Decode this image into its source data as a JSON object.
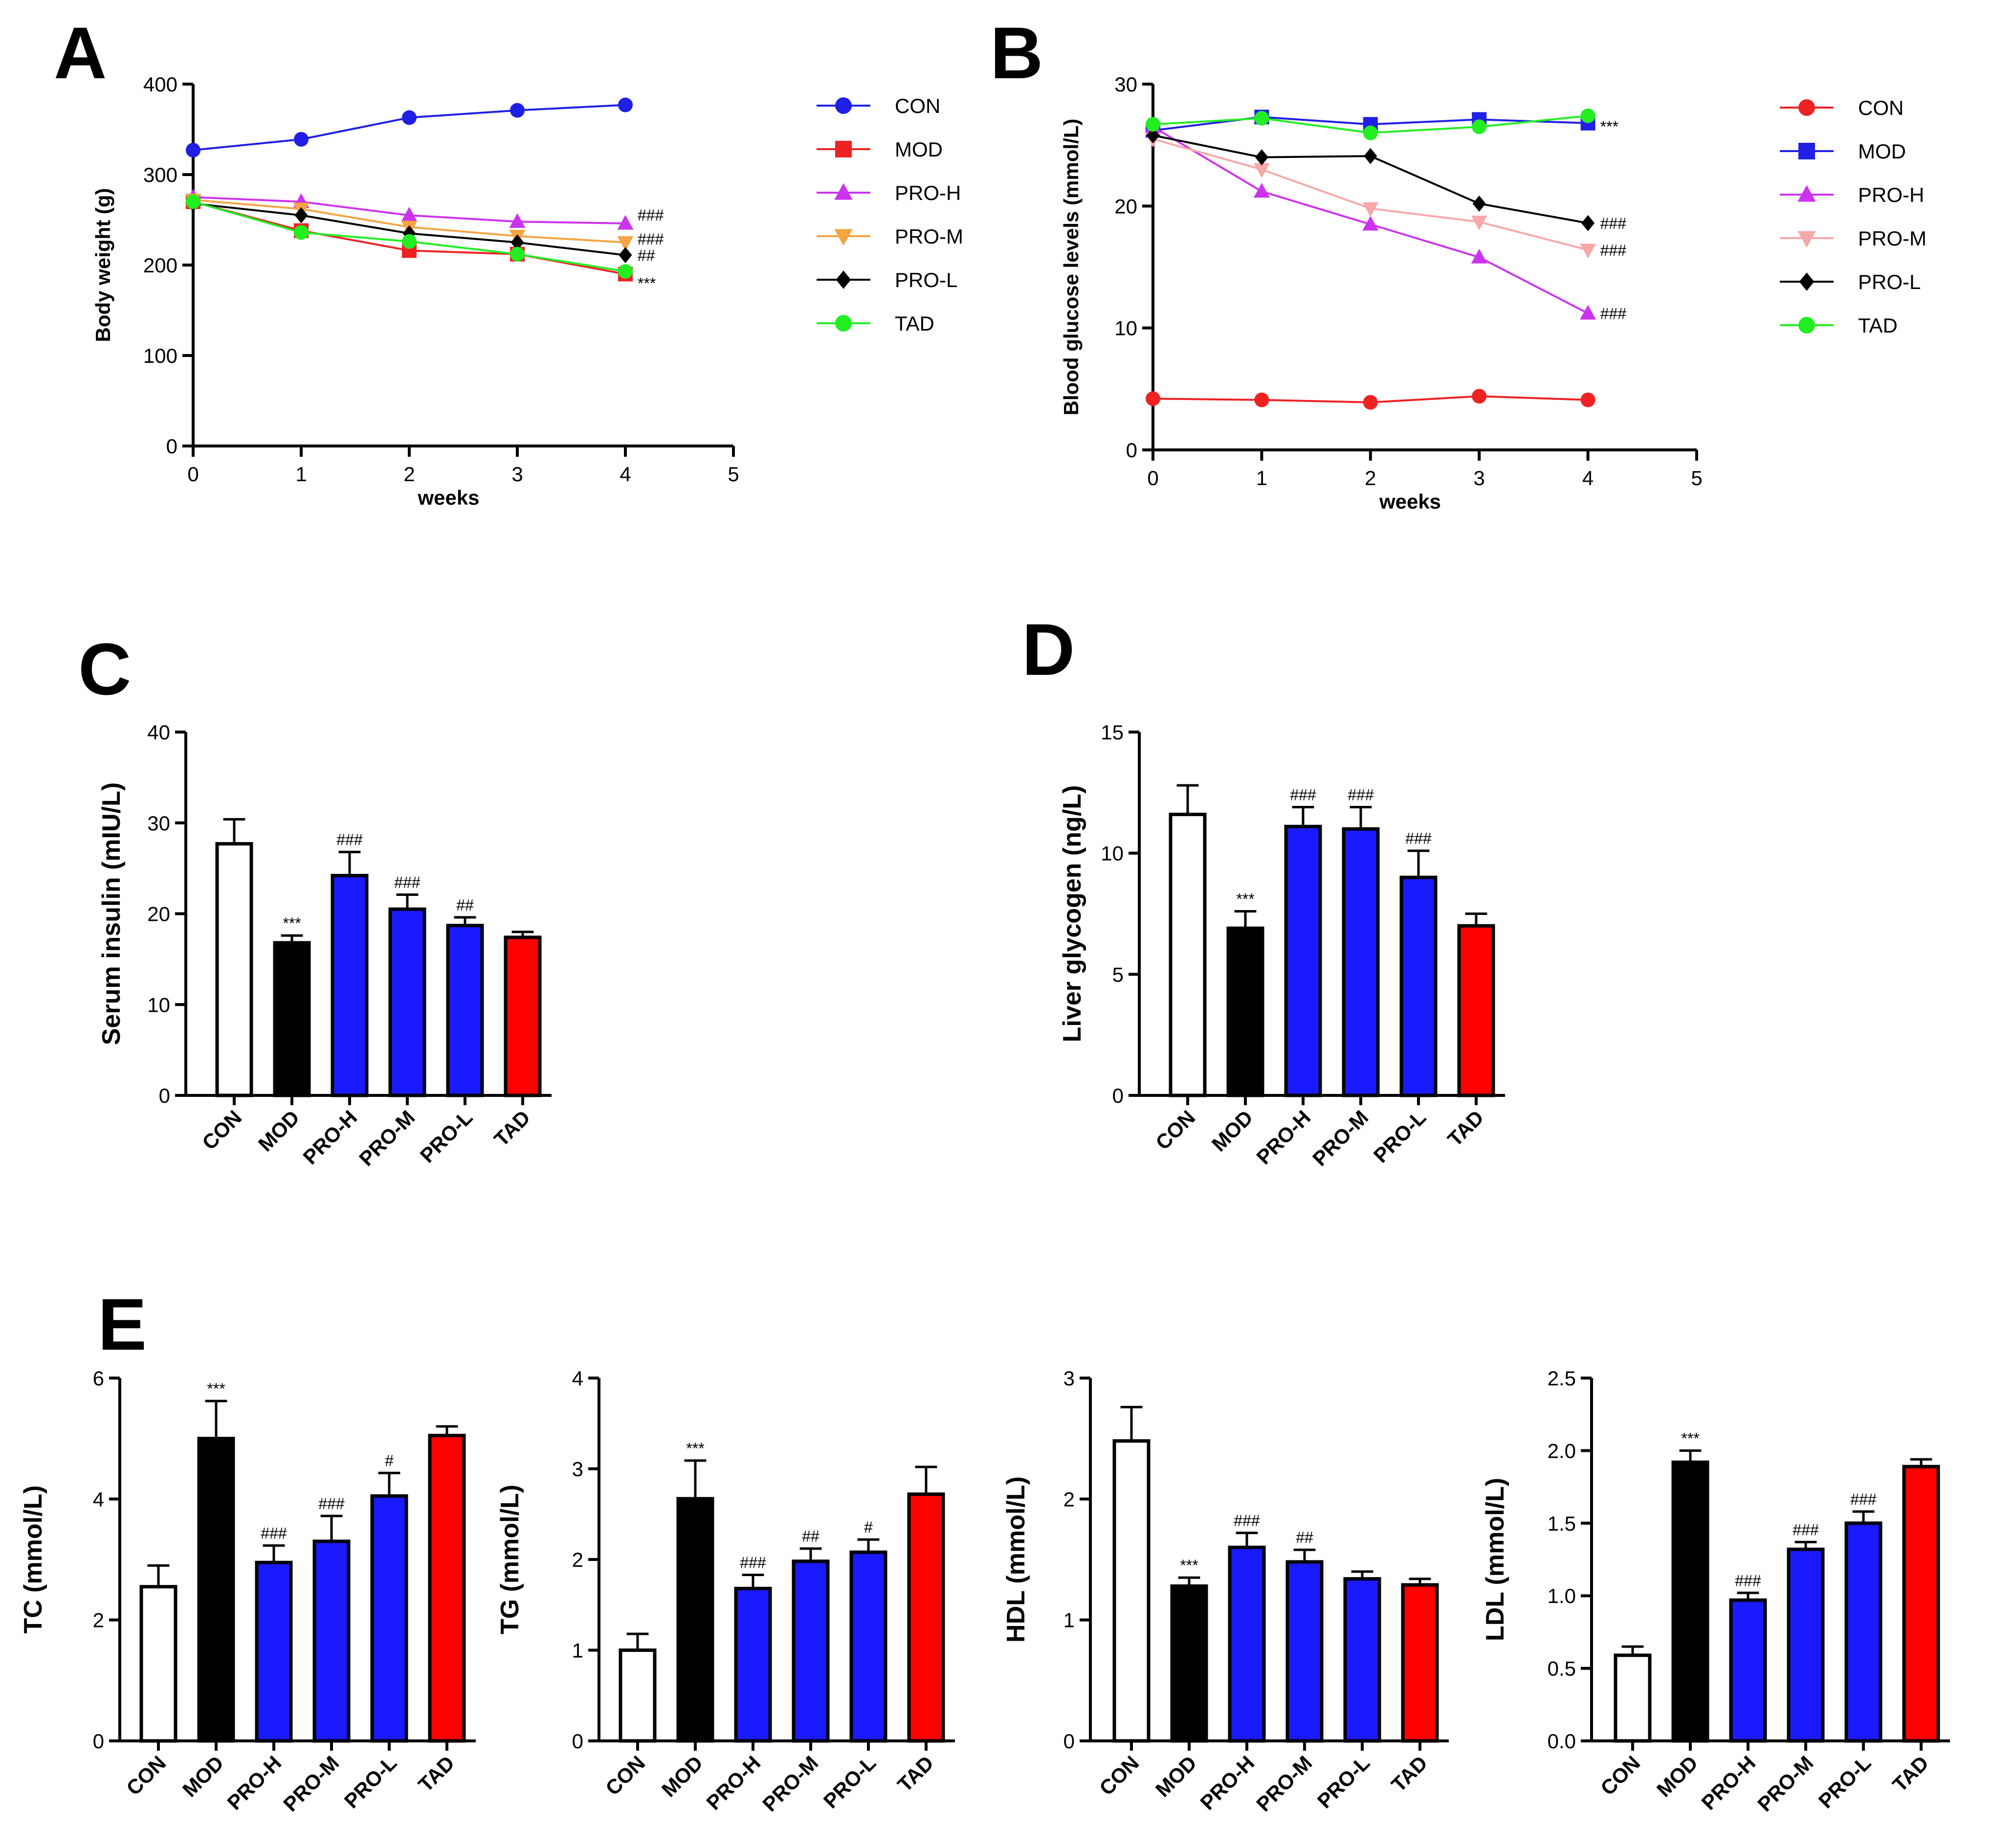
{
  "chart_data": [
    {
      "panel": "A",
      "type": "line",
      "xlabel": "weeks",
      "ylabel": "Body weight (g)",
      "xlim": [
        0,
        5
      ],
      "ylim": [
        0,
        400
      ],
      "xticks": [
        "0",
        "1",
        "2",
        "3",
        "4",
        "5"
      ],
      "yticks": [
        "0",
        "100",
        "200",
        "300",
        "400"
      ],
      "legend_position": "right",
      "x": [
        0,
        1,
        2,
        3,
        4
      ],
      "series": [
        {
          "name": "CON",
          "color": "#1f1fe6",
          "marker": "circle",
          "values": [
            327,
            339,
            363,
            371,
            377
          ]
        },
        {
          "name": "MOD",
          "color": "#ee2222",
          "marker": "square",
          "values": [
            270,
            238,
            216,
            212,
            190
          ]
        },
        {
          "name": "PRO-H",
          "color": "#cc33ee",
          "marker": "triangle-up",
          "values": [
            275,
            270,
            255,
            248,
            246
          ]
        },
        {
          "name": "PRO-M",
          "color": "#f5a442",
          "marker": "triangle-down",
          "values": [
            272,
            262,
            242,
            232,
            225
          ]
        },
        {
          "name": "PRO-L",
          "color": "#000000",
          "marker": "diamond",
          "values": [
            268,
            255,
            235,
            225,
            211
          ]
        },
        {
          "name": "TAD",
          "color": "#22ee22",
          "marker": "circle",
          "values": [
            270,
            236,
            226,
            212,
            193
          ]
        }
      ],
      "annotations": [
        {
          "series": "PRO-H",
          "text": "###"
        },
        {
          "series": "PRO-M",
          "text": "###"
        },
        {
          "series": "PRO-L",
          "text": "##"
        },
        {
          "series": "MOD",
          "text": "***"
        }
      ]
    },
    {
      "panel": "B",
      "type": "line",
      "xlabel": "weeks",
      "ylabel": "Blood glucose levels (mmol/L)",
      "xlim": [
        0,
        5
      ],
      "ylim": [
        0,
        30
      ],
      "xticks": [
        "0",
        "1",
        "2",
        "3",
        "4",
        "5"
      ],
      "yticks": [
        "0",
        "10",
        "20",
        "30"
      ],
      "legend_position": "right",
      "x": [
        0,
        1,
        2,
        3,
        4
      ],
      "series": [
        {
          "name": "CON",
          "color": "#ee2222",
          "marker": "circle",
          "values": [
            4.2,
            4.1,
            3.9,
            4.4,
            4.1
          ]
        },
        {
          "name": "MOD",
          "color": "#1f1fe6",
          "marker": "square",
          "values": [
            26.2,
            27.3,
            26.7,
            27.1,
            26.8
          ]
        },
        {
          "name": "PRO-H",
          "color": "#cc33ee",
          "marker": "triangle-up",
          "values": [
            26.5,
            21.2,
            18.5,
            15.8,
            11.2
          ]
        },
        {
          "name": "PRO-M",
          "color": "#f7a8a8",
          "marker": "triangle-down",
          "values": [
            25.5,
            23.0,
            19.8,
            18.7,
            16.4
          ]
        },
        {
          "name": "PRO-L",
          "color": "#000000",
          "marker": "diamond",
          "values": [
            25.8,
            24.0,
            24.1,
            20.2,
            18.6
          ]
        },
        {
          "name": "TAD",
          "color": "#22ee22",
          "marker": "circle",
          "values": [
            26.7,
            27.2,
            26.0,
            26.5,
            27.4
          ]
        }
      ],
      "annotations": [
        {
          "series": "MOD",
          "text": "***"
        },
        {
          "series": "PRO-L",
          "text": "###"
        },
        {
          "series": "PRO-M",
          "text": "###"
        },
        {
          "series": "PRO-H",
          "text": "###"
        }
      ]
    },
    {
      "panel": "C",
      "type": "bar",
      "ylabel": "Serum insulin (mIU/L)",
      "ylim": [
        0,
        40
      ],
      "yticks": [
        "0",
        "10",
        "20",
        "30",
        "40"
      ],
      "categories": [
        "CON",
        "MOD",
        "PRO-H",
        "PRO-M",
        "PRO-L",
        "TAD"
      ],
      "values": [
        27.7,
        16.8,
        24.2,
        20.5,
        18.7,
        17.4
      ],
      "errors": [
        2.7,
        0.8,
        2.6,
        1.6,
        0.9,
        0.6
      ],
      "significance": [
        "",
        "***",
        "###",
        "###",
        "##",
        ""
      ]
    },
    {
      "panel": "D",
      "type": "bar",
      "ylabel": "Liver glycogen (ng/L)",
      "ylim": [
        0,
        15
      ],
      "yticks": [
        "0",
        "5",
        "10",
        "15"
      ],
      "categories": [
        "CON",
        "MOD",
        "PRO-H",
        "PRO-M",
        "PRO-L",
        "TAD"
      ],
      "values": [
        11.6,
        6.9,
        11.1,
        11.0,
        9.0,
        7.0
      ],
      "errors": [
        1.2,
        0.7,
        0.8,
        0.9,
        1.1,
        0.5
      ],
      "significance": [
        "",
        "***",
        "###",
        "###",
        "###",
        ""
      ]
    },
    {
      "panel": "E",
      "type": "bar",
      "ylabel": "TC (mmol/L)",
      "ylim": [
        0,
        6
      ],
      "yticks": [
        "0",
        "2",
        "4",
        "6"
      ],
      "categories": [
        "CON",
        "MOD",
        "PRO-H",
        "PRO-M",
        "PRO-L",
        "TAD"
      ],
      "values": [
        2.55,
        5.0,
        2.95,
        3.3,
        4.05,
        5.05
      ],
      "errors": [
        0.35,
        0.62,
        0.28,
        0.42,
        0.38,
        0.15
      ],
      "significance": [
        "",
        "***",
        "###",
        "###",
        "#",
        ""
      ]
    },
    {
      "panel": "E",
      "type": "bar",
      "ylabel": "TG (mmol/L)",
      "ylim": [
        0,
        4
      ],
      "yticks": [
        "0",
        "1",
        "2",
        "3",
        "4"
      ],
      "categories": [
        "CON",
        "MOD",
        "PRO-H",
        "PRO-M",
        "PRO-L",
        "TAD"
      ],
      "values": [
        1.0,
        2.67,
        1.68,
        1.98,
        2.08,
        2.72
      ],
      "errors": [
        0.18,
        0.42,
        0.15,
        0.14,
        0.14,
        0.3
      ],
      "significance": [
        "",
        "***",
        "###",
        "##",
        "#",
        ""
      ]
    },
    {
      "panel": "E",
      "type": "bar",
      "ylabel": "HDL (mmol/L)",
      "ylim": [
        0,
        3
      ],
      "yticks": [
        "0",
        "1",
        "2",
        "3"
      ],
      "categories": [
        "CON",
        "MOD",
        "PRO-H",
        "PRO-M",
        "PRO-L",
        "TAD"
      ],
      "values": [
        2.48,
        1.28,
        1.6,
        1.48,
        1.34,
        1.29
      ],
      "errors": [
        0.28,
        0.07,
        0.12,
        0.1,
        0.06,
        0.05
      ],
      "significance": [
        "",
        "***",
        "###",
        "##",
        "",
        ""
      ]
    },
    {
      "panel": "E",
      "type": "bar",
      "ylabel": "LDL (mmol/L)",
      "ylim": [
        0,
        2.5
      ],
      "yticks": [
        "0.0",
        "0.5",
        "1.0",
        "1.5",
        "2.0",
        "2.5"
      ],
      "categories": [
        "CON",
        "MOD",
        "PRO-H",
        "PRO-M",
        "PRO-L",
        "TAD"
      ],
      "values": [
        0.59,
        1.92,
        0.97,
        1.32,
        1.5,
        1.89
      ],
      "errors": [
        0.06,
        0.08,
        0.05,
        0.05,
        0.08,
        0.05
      ],
      "significance": [
        "",
        "***",
        "###",
        "###",
        "###",
        ""
      ]
    }
  ],
  "bar_fill_colors": [
    "#ffffff",
    "#000000",
    "#1a1aff",
    "#1a1aff",
    "#1a1aff",
    "#ff0000"
  ],
  "panel_letters": [
    "A",
    "B",
    "C",
    "D",
    "E"
  ]
}
